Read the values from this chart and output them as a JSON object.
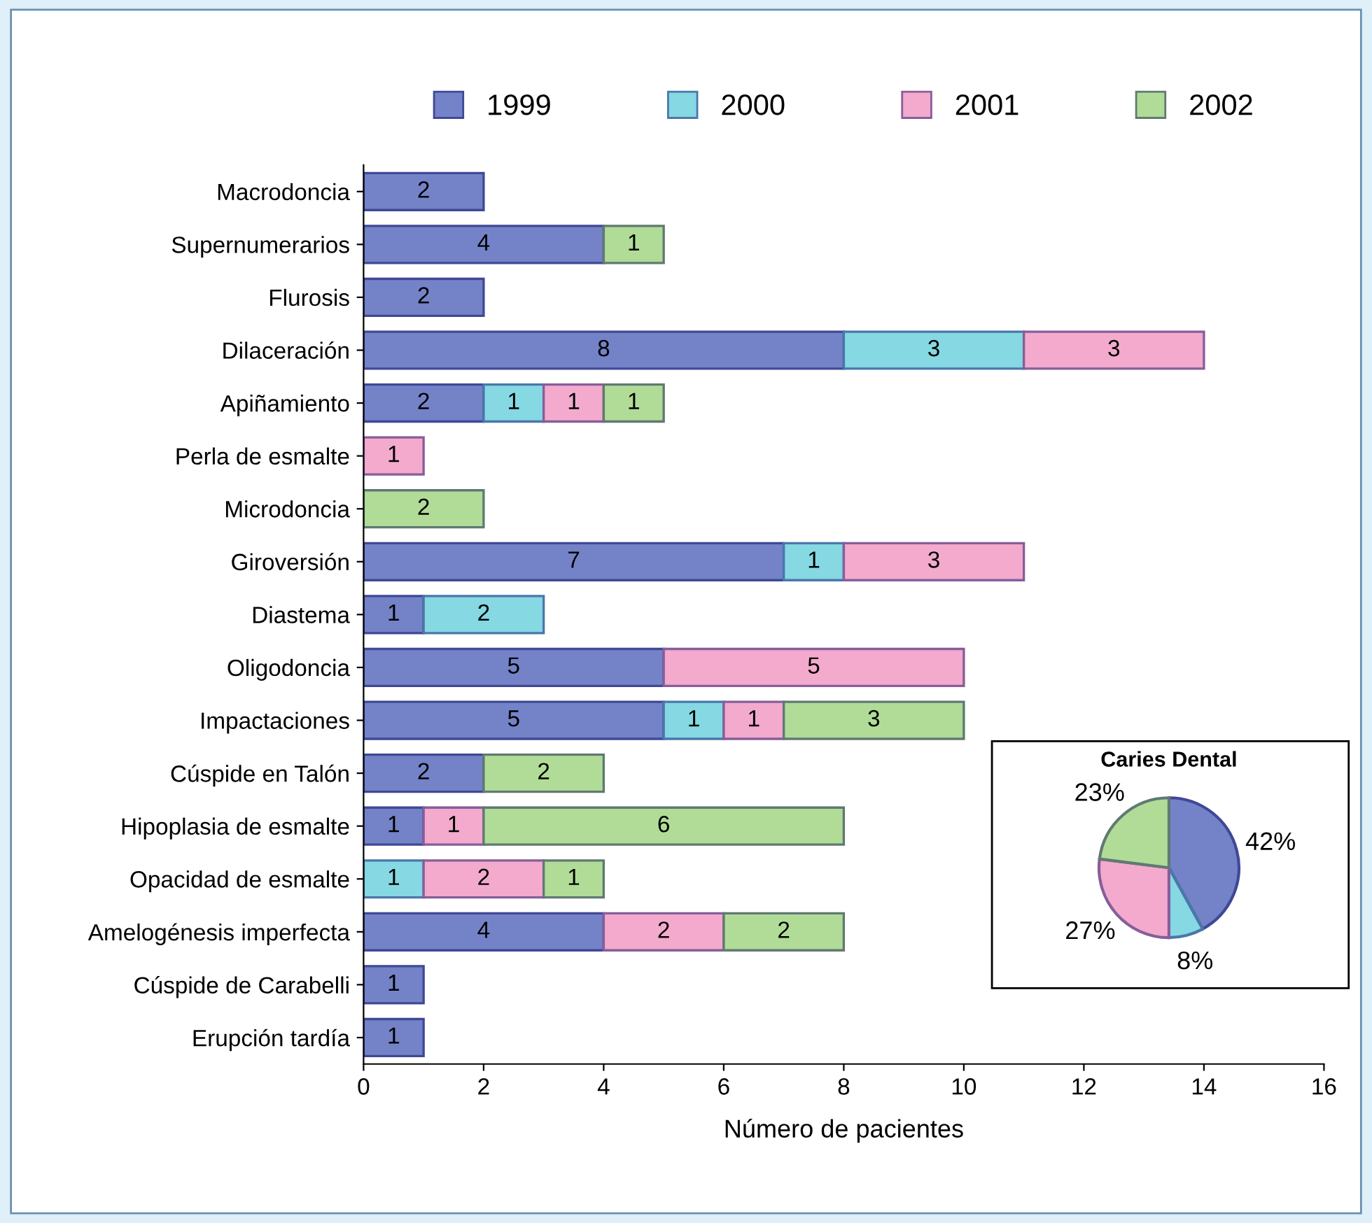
{
  "chart_data": [
    {
      "type": "bar",
      "orientation": "horizontal",
      "stacked": true,
      "xlabel": "Número de pacientes",
      "categories": [
        "Macrodoncia",
        "Supernumerarios",
        "Flurosis",
        "Dilaceración",
        "Apiñamiento",
        "Perla de esmalte",
        "Microdoncia",
        "Giroversión",
        "Diastema",
        "Oligodoncia",
        "Impactaciones",
        "Cúspide en Talón",
        "Hipoplasia de esmalte",
        "Opacidad de esmalte",
        "Amelogénesis imperfecta",
        "Cúspide de Carabelli",
        "Erupción tardía"
      ],
      "series": [
        {
          "name": "1999",
          "color": "#7483c8",
          "values": [
            2,
            4,
            2,
            8,
            2,
            null,
            null,
            7,
            1,
            5,
            5,
            2,
            1,
            null,
            4,
            1,
            1
          ]
        },
        {
          "name": "2000",
          "color": "#86d8e2",
          "values": [
            null,
            null,
            null,
            3,
            1,
            null,
            null,
            1,
            2,
            null,
            1,
            null,
            null,
            1,
            null,
            null,
            null
          ]
        },
        {
          "name": "2001",
          "color": "#f3aacd",
          "values": [
            null,
            null,
            null,
            3,
            1,
            1,
            null,
            3,
            null,
            5,
            1,
            null,
            1,
            2,
            2,
            null,
            null
          ]
        },
        {
          "name": "2002",
          "color": "#b0dc98",
          "values": [
            null,
            1,
            null,
            null,
            1,
            null,
            2,
            null,
            null,
            null,
            3,
            2,
            6,
            1,
            2,
            null,
            null
          ]
        }
      ],
      "xlim": [
        0,
        16
      ],
      "xticks": [
        0,
        2,
        4,
        6,
        8,
        10,
        12,
        14,
        16
      ],
      "data_labels": true,
      "legend": "top",
      "grid": false
    },
    {
      "type": "pie",
      "title": "Caries Dental",
      "categories": [
        null,
        null,
        null,
        null
      ],
      "values": [
        42,
        8,
        27,
        23
      ],
      "colors": [
        "#7483c8",
        "#86d8e2",
        "#f3aacd",
        "#b0dc98"
      ],
      "value_labels": [
        "42%",
        "8%",
        "27%",
        "23%"
      ]
    }
  ]
}
